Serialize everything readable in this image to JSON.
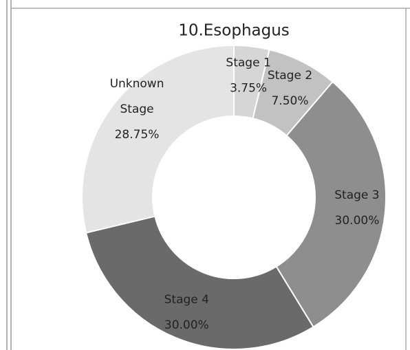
{
  "chart_data": {
    "type": "pie",
    "donut": true,
    "title": "10.Esophagus",
    "categories": [
      "Stage 1",
      "Stage 2",
      "Stage 3",
      "Stage 4",
      "Unknown Stage"
    ],
    "values": [
      3.75,
      7.5,
      30.0,
      30.0,
      28.75
    ],
    "value_labels": [
      "3.75%",
      "7.50%",
      "30.00%",
      "30.00%",
      "28.75%"
    ],
    "colors": [
      "#d6d6d6",
      "#c2c2c2",
      "#8e8e8e",
      "#6a6a6a",
      "#e4e4e4"
    ]
  }
}
